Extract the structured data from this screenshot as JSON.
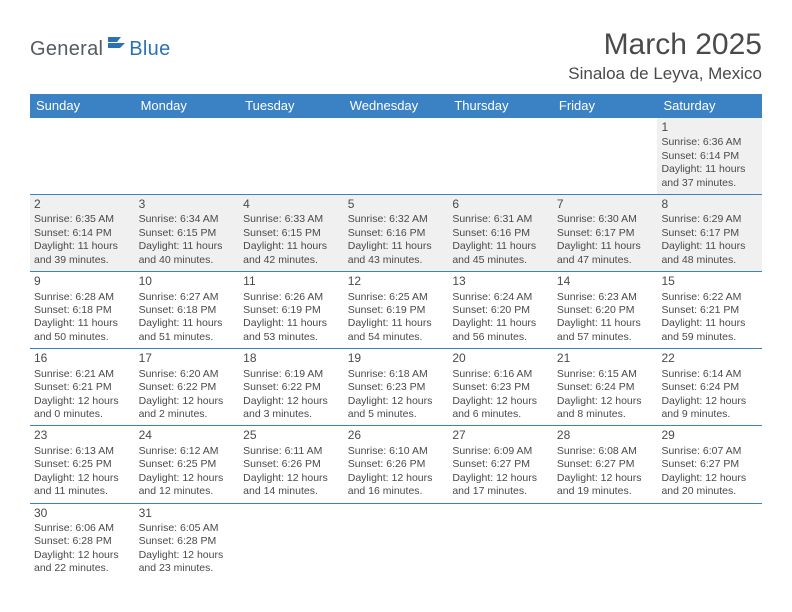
{
  "logo": {
    "text1": "General",
    "text2": "Blue"
  },
  "title": "March 2025",
  "location": "Sinaloa de Leyva, Mexico",
  "colors": {
    "header_bg": "#3b82c4",
    "header_fg": "#ffffff",
    "shade_bg": "#f0f0f0",
    "border": "#3b82c4",
    "text": "#4a4a4a",
    "logo_gray": "#555b62",
    "logo_blue": "#2d71b5"
  },
  "dow": [
    "Sunday",
    "Monday",
    "Tuesday",
    "Wednesday",
    "Thursday",
    "Friday",
    "Saturday"
  ],
  "weeks": [
    [
      {
        "shade": false
      },
      {
        "shade": false
      },
      {
        "shade": false
      },
      {
        "shade": false
      },
      {
        "shade": false
      },
      {
        "shade": false
      },
      {
        "num": "1",
        "shade": true,
        "sunrise": "6:36 AM",
        "sunset": "6:14 PM",
        "daylight": "11 hours and 37 minutes."
      }
    ],
    [
      {
        "num": "2",
        "shade": true,
        "sunrise": "6:35 AM",
        "sunset": "6:14 PM",
        "daylight": "11 hours and 39 minutes."
      },
      {
        "num": "3",
        "shade": true,
        "sunrise": "6:34 AM",
        "sunset": "6:15 PM",
        "daylight": "11 hours and 40 minutes."
      },
      {
        "num": "4",
        "shade": true,
        "sunrise": "6:33 AM",
        "sunset": "6:15 PM",
        "daylight": "11 hours and 42 minutes."
      },
      {
        "num": "5",
        "shade": true,
        "sunrise": "6:32 AM",
        "sunset": "6:16 PM",
        "daylight": "11 hours and 43 minutes."
      },
      {
        "num": "6",
        "shade": true,
        "sunrise": "6:31 AM",
        "sunset": "6:16 PM",
        "daylight": "11 hours and 45 minutes."
      },
      {
        "num": "7",
        "shade": true,
        "sunrise": "6:30 AM",
        "sunset": "6:17 PM",
        "daylight": "11 hours and 47 minutes."
      },
      {
        "num": "8",
        "shade": true,
        "sunrise": "6:29 AM",
        "sunset": "6:17 PM",
        "daylight": "11 hours and 48 minutes."
      }
    ],
    [
      {
        "num": "9",
        "shade": false,
        "sunrise": "6:28 AM",
        "sunset": "6:18 PM",
        "daylight": "11 hours and 50 minutes."
      },
      {
        "num": "10",
        "shade": false,
        "sunrise": "6:27 AM",
        "sunset": "6:18 PM",
        "daylight": "11 hours and 51 minutes."
      },
      {
        "num": "11",
        "shade": false,
        "sunrise": "6:26 AM",
        "sunset": "6:19 PM",
        "daylight": "11 hours and 53 minutes."
      },
      {
        "num": "12",
        "shade": false,
        "sunrise": "6:25 AM",
        "sunset": "6:19 PM",
        "daylight": "11 hours and 54 minutes."
      },
      {
        "num": "13",
        "shade": false,
        "sunrise": "6:24 AM",
        "sunset": "6:20 PM",
        "daylight": "11 hours and 56 minutes."
      },
      {
        "num": "14",
        "shade": false,
        "sunrise": "6:23 AM",
        "sunset": "6:20 PM",
        "daylight": "11 hours and 57 minutes."
      },
      {
        "num": "15",
        "shade": false,
        "sunrise": "6:22 AM",
        "sunset": "6:21 PM",
        "daylight": "11 hours and 59 minutes."
      }
    ],
    [
      {
        "num": "16",
        "shade": false,
        "sunrise": "6:21 AM",
        "sunset": "6:21 PM",
        "daylight": "12 hours and 0 minutes."
      },
      {
        "num": "17",
        "shade": false,
        "sunrise": "6:20 AM",
        "sunset": "6:22 PM",
        "daylight": "12 hours and 2 minutes."
      },
      {
        "num": "18",
        "shade": false,
        "sunrise": "6:19 AM",
        "sunset": "6:22 PM",
        "daylight": "12 hours and 3 minutes."
      },
      {
        "num": "19",
        "shade": false,
        "sunrise": "6:18 AM",
        "sunset": "6:23 PM",
        "daylight": "12 hours and 5 minutes."
      },
      {
        "num": "20",
        "shade": false,
        "sunrise": "6:16 AM",
        "sunset": "6:23 PM",
        "daylight": "12 hours and 6 minutes."
      },
      {
        "num": "21",
        "shade": false,
        "sunrise": "6:15 AM",
        "sunset": "6:24 PM",
        "daylight": "12 hours and 8 minutes."
      },
      {
        "num": "22",
        "shade": false,
        "sunrise": "6:14 AM",
        "sunset": "6:24 PM",
        "daylight": "12 hours and 9 minutes."
      }
    ],
    [
      {
        "num": "23",
        "shade": false,
        "sunrise": "6:13 AM",
        "sunset": "6:25 PM",
        "daylight": "12 hours and 11 minutes."
      },
      {
        "num": "24",
        "shade": false,
        "sunrise": "6:12 AM",
        "sunset": "6:25 PM",
        "daylight": "12 hours and 12 minutes."
      },
      {
        "num": "25",
        "shade": false,
        "sunrise": "6:11 AM",
        "sunset": "6:26 PM",
        "daylight": "12 hours and 14 minutes."
      },
      {
        "num": "26",
        "shade": false,
        "sunrise": "6:10 AM",
        "sunset": "6:26 PM",
        "daylight": "12 hours and 16 minutes."
      },
      {
        "num": "27",
        "shade": false,
        "sunrise": "6:09 AM",
        "sunset": "6:27 PM",
        "daylight": "12 hours and 17 minutes."
      },
      {
        "num": "28",
        "shade": false,
        "sunrise": "6:08 AM",
        "sunset": "6:27 PM",
        "daylight": "12 hours and 19 minutes."
      },
      {
        "num": "29",
        "shade": false,
        "sunrise": "6:07 AM",
        "sunset": "6:27 PM",
        "daylight": "12 hours and 20 minutes."
      }
    ],
    [
      {
        "num": "30",
        "shade": false,
        "sunrise": "6:06 AM",
        "sunset": "6:28 PM",
        "daylight": "12 hours and 22 minutes."
      },
      {
        "num": "31",
        "shade": false,
        "sunrise": "6:05 AM",
        "sunset": "6:28 PM",
        "daylight": "12 hours and 23 minutes."
      },
      {
        "shade": false
      },
      {
        "shade": false
      },
      {
        "shade": false
      },
      {
        "shade": false
      },
      {
        "shade": false
      }
    ]
  ],
  "labels": {
    "sunrise": "Sunrise:",
    "sunset": "Sunset:",
    "daylight": "Daylight:"
  }
}
